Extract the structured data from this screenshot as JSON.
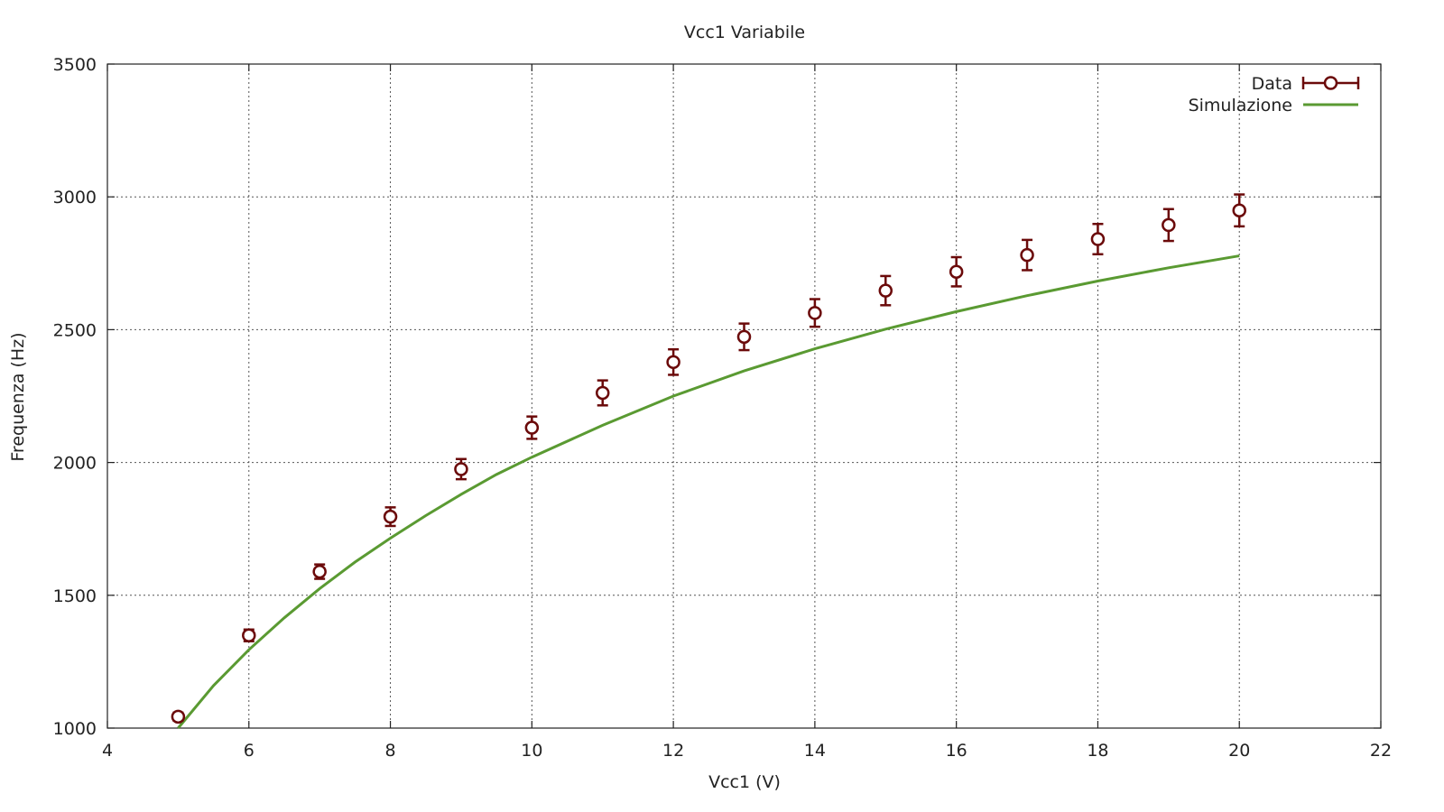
{
  "chart_data": {
    "type": "scatter",
    "title": "Vcc1 Variabile",
    "xlabel": "Vcc1 (V)",
    "ylabel": "Frequenza (Hz)",
    "xlim": [
      4,
      22
    ],
    "ylim": [
      1000,
      3500
    ],
    "xticks": [
      "4",
      "6",
      "8",
      "10",
      "12",
      "14",
      "16",
      "18",
      "20",
      "22"
    ],
    "yticks": [
      "1000",
      "1500",
      "2000",
      "2500",
      "3000",
      "3500"
    ],
    "grid": true,
    "legend_position": "top-right",
    "series": [
      {
        "name": "Data",
        "kind": "points-with-errorbars",
        "color": "#6b0a0a",
        "x": [
          5,
          6,
          7,
          8,
          9,
          10,
          11,
          12,
          13,
          14,
          15,
          16,
          17,
          18,
          19,
          20
        ],
        "y": [
          1043,
          1349,
          1589,
          1796,
          1975,
          2131,
          2262,
          2378,
          2473,
          2563,
          2647,
          2718,
          2781,
          2841,
          2894,
          2949
        ],
        "yerr": [
          15,
          22,
          27,
          35,
          38,
          42,
          47,
          48,
          50,
          52,
          55,
          55,
          57,
          57,
          60,
          60
        ]
      },
      {
        "name": "Simulazione",
        "kind": "line",
        "color": "#5a9a32",
        "x": [
          5,
          5.5,
          6,
          6.5,
          7,
          7.5,
          8,
          8.5,
          9,
          9.5,
          10,
          11,
          12,
          13,
          14,
          15,
          16,
          17,
          18,
          19,
          20
        ],
        "y": [
          1000,
          1160,
          1295,
          1415,
          1525,
          1625,
          1715,
          1800,
          1880,
          1955,
          2020,
          2140,
          2250,
          2345,
          2428,
          2502,
          2568,
          2628,
          2683,
          2733,
          2778
        ]
      }
    ]
  }
}
